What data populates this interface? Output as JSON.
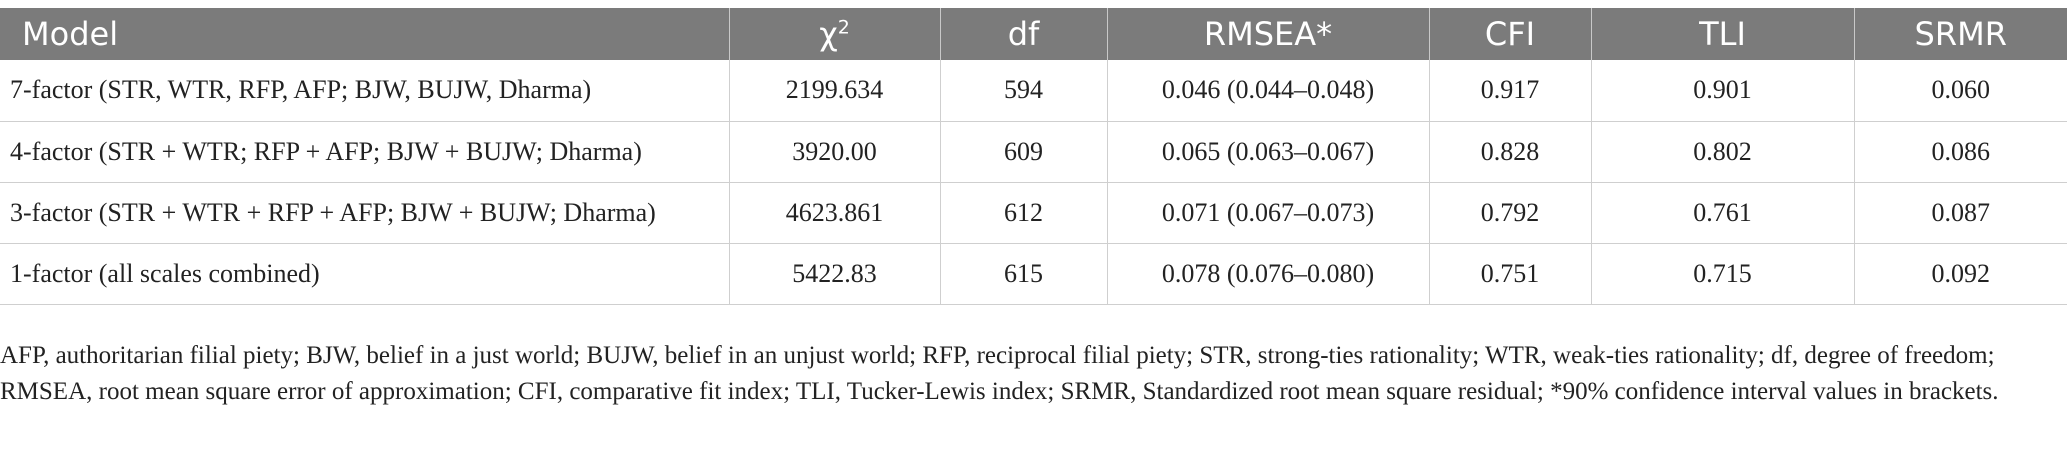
{
  "table": {
    "headers": {
      "model": "Model",
      "chi_base": "χ",
      "chi_sup": "2",
      "df": "df",
      "rmsea": "RMSEA*",
      "cfi": "CFI",
      "tli": "TLI",
      "srmr": "SRMR"
    },
    "rows": [
      {
        "model": "7-factor (STR, WTR, RFP, AFP; BJW, BUJW, Dharma)",
        "chi2": "2199.634",
        "df": "594",
        "rmsea": "0.046 (0.044–0.048)",
        "cfi": "0.917",
        "tli": "0.901",
        "srmr": "0.060"
      },
      {
        "model": "4-factor (STR + WTR; RFP + AFP; BJW + BUJW; Dharma)",
        "chi2": "3920.00",
        "df": "609",
        "rmsea": "0.065 (0.063–0.067)",
        "cfi": "0.828",
        "tli": "0.802",
        "srmr": "0.086"
      },
      {
        "model": "3-factor (STR + WTR + RFP + AFP; BJW + BUJW; Dharma)",
        "chi2": "4623.861",
        "df": "612",
        "rmsea": "0.071 (0.067–0.073)",
        "cfi": "0.792",
        "tli": "0.761",
        "srmr": "0.087"
      },
      {
        "model": "1-factor (all scales combined)",
        "chi2": "5422.83",
        "df": "615",
        "rmsea": "0.078 (0.076–0.080)",
        "cfi": "0.751",
        "tli": "0.715",
        "srmr": "0.092"
      }
    ]
  },
  "footnote": "AFP, authoritarian filial piety; BJW, belief in a just world; BUJW, belief in an unjust world; RFP, reciprocal filial piety; STR, strong-ties rationality; WTR, weak-ties rationality; df, degree of freedom; RMSEA, root mean square error of approximation; CFI, comparative fit index; TLI, Tucker-Lewis index; SRMR, Standardized root mean square residual; *90% confidence interval values in brackets."
}
